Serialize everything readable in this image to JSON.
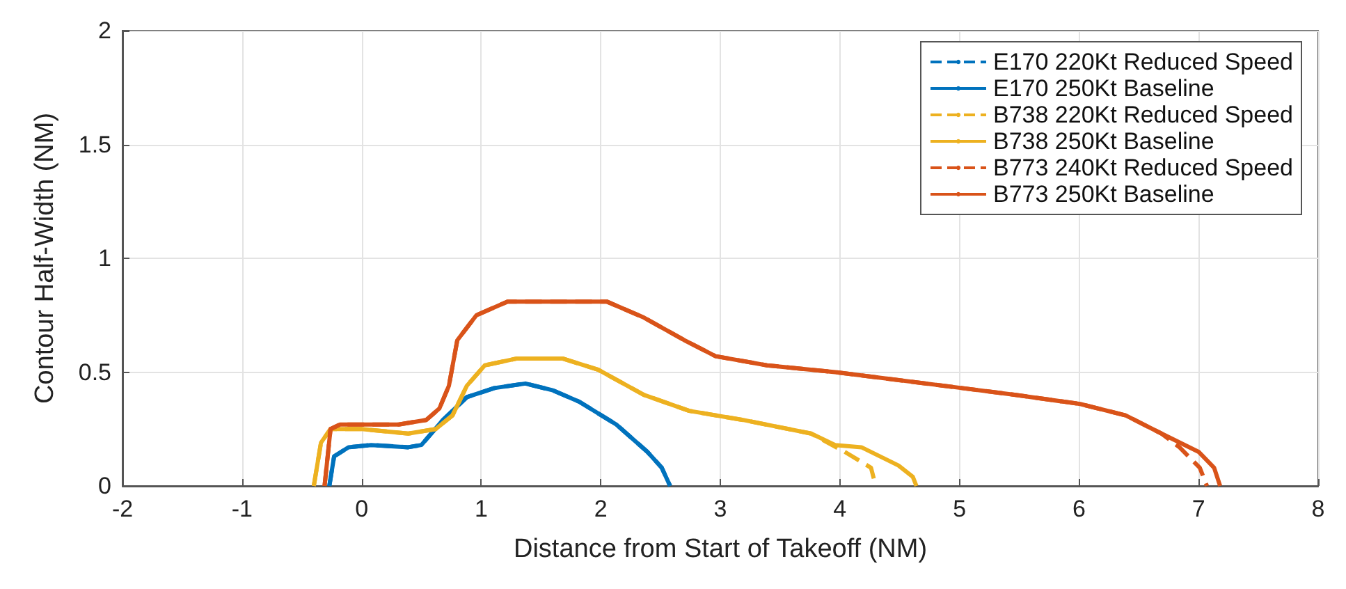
{
  "chart_data": {
    "type": "line",
    "xlabel": "Distance from Start of Takeoff (NM)",
    "ylabel": "Contour Half-Width (NM)",
    "xlim": [
      -2,
      8
    ],
    "xticks": [
      -2,
      -1,
      0,
      1,
      2,
      3,
      4,
      5,
      6,
      7,
      8
    ],
    "ylim": [
      0,
      2
    ],
    "yticks": [
      0,
      0.5,
      1,
      1.5,
      2
    ],
    "grid": true,
    "legend": "top right",
    "marker": "none",
    "line_style": "solid",
    "series": [
      {
        "name": "E170 220Kt Reduced Speed",
        "color": "#0072bd",
        "line_style": "dashed",
        "x": [
          -0.27,
          -0.23,
          -0.11,
          0.08,
          0.39,
          0.5,
          0.68,
          0.88,
          1.11,
          1.37,
          1.6,
          1.82,
          2.13,
          2.39,
          2.51,
          2.58
        ],
        "values": [
          0,
          0.13,
          0.17,
          0.18,
          0.17,
          0.18,
          0.29,
          0.39,
          0.43,
          0.45,
          0.42,
          0.37,
          0.27,
          0.15,
          0.08,
          0
        ]
      },
      {
        "name": "E170 250Kt Baseline",
        "color": "#0072bd",
        "x": [
          -0.27,
          -0.23,
          -0.11,
          0.08,
          0.39,
          0.5,
          0.68,
          0.88,
          1.11,
          1.37,
          1.6,
          1.82,
          2.13,
          2.39,
          2.51,
          2.58
        ],
        "values": [
          0,
          0.13,
          0.17,
          0.18,
          0.17,
          0.18,
          0.29,
          0.39,
          0.43,
          0.45,
          0.42,
          0.37,
          0.27,
          0.15,
          0.08,
          0
        ]
      },
      {
        "name": "B738 220Kt Reduced Speed",
        "color": "#edb120",
        "line_style": "dashed",
        "x": [
          -0.4,
          -0.34,
          -0.26,
          0,
          0.39,
          0.62,
          0.76,
          0.88,
          1.03,
          1.3,
          1.68,
          1.98,
          2.36,
          2.74,
          3.19,
          3.76,
          4.04,
          4.26,
          4.3
        ],
        "values": [
          0,
          0.19,
          0.25,
          0.25,
          0.23,
          0.25,
          0.31,
          0.44,
          0.53,
          0.56,
          0.56,
          0.51,
          0.4,
          0.33,
          0.29,
          0.23,
          0.15,
          0.08,
          0
        ]
      },
      {
        "name": "B738 250Kt Baseline",
        "color": "#edb120",
        "x": [
          -0.4,
          -0.34,
          -0.26,
          0,
          0.39,
          0.62,
          0.76,
          0.88,
          1.03,
          1.3,
          1.68,
          1.98,
          2.36,
          2.74,
          3.19,
          3.76,
          3.96,
          4.18,
          4.49,
          4.61,
          4.64
        ],
        "values": [
          0,
          0.19,
          0.25,
          0.25,
          0.23,
          0.25,
          0.31,
          0.44,
          0.53,
          0.56,
          0.56,
          0.51,
          0.4,
          0.33,
          0.29,
          0.23,
          0.18,
          0.17,
          0.09,
          0.04,
          0
        ]
      },
      {
        "name": "B773 240Kt Reduced Speed",
        "color": "#d95319",
        "line_style": "dashed",
        "x": [
          -0.31,
          -0.26,
          -0.18,
          0,
          0.31,
          0.54,
          0.65,
          0.73,
          0.8,
          0.96,
          1.22,
          1.68,
          2.05,
          2.36,
          2.7,
          2.96,
          3.39,
          3.96,
          5.02,
          5.47,
          6.01,
          6.39,
          6.69,
          6.84,
          7.01,
          7.07
        ],
        "values": [
          0,
          0.25,
          0.27,
          0.27,
          0.27,
          0.29,
          0.34,
          0.44,
          0.64,
          0.75,
          0.81,
          0.81,
          0.81,
          0.74,
          0.64,
          0.57,
          0.53,
          0.5,
          0.43,
          0.4,
          0.36,
          0.31,
          0.23,
          0.17,
          0.08,
          0
        ]
      },
      {
        "name": "B773 250Kt Baseline",
        "color": "#d95319",
        "x": [
          -0.31,
          -0.26,
          -0.18,
          0,
          0.31,
          0.54,
          0.65,
          0.73,
          0.8,
          0.96,
          1.22,
          1.68,
          2.05,
          2.36,
          2.7,
          2.96,
          3.39,
          3.96,
          5.02,
          5.47,
          6.01,
          6.39,
          6.69,
          7.0,
          7.13,
          7.18
        ],
        "values": [
          0,
          0.25,
          0.27,
          0.27,
          0.27,
          0.29,
          0.34,
          0.44,
          0.64,
          0.75,
          0.81,
          0.81,
          0.81,
          0.74,
          0.64,
          0.57,
          0.53,
          0.5,
          0.43,
          0.4,
          0.36,
          0.31,
          0.23,
          0.15,
          0.08,
          0
        ]
      }
    ]
  }
}
